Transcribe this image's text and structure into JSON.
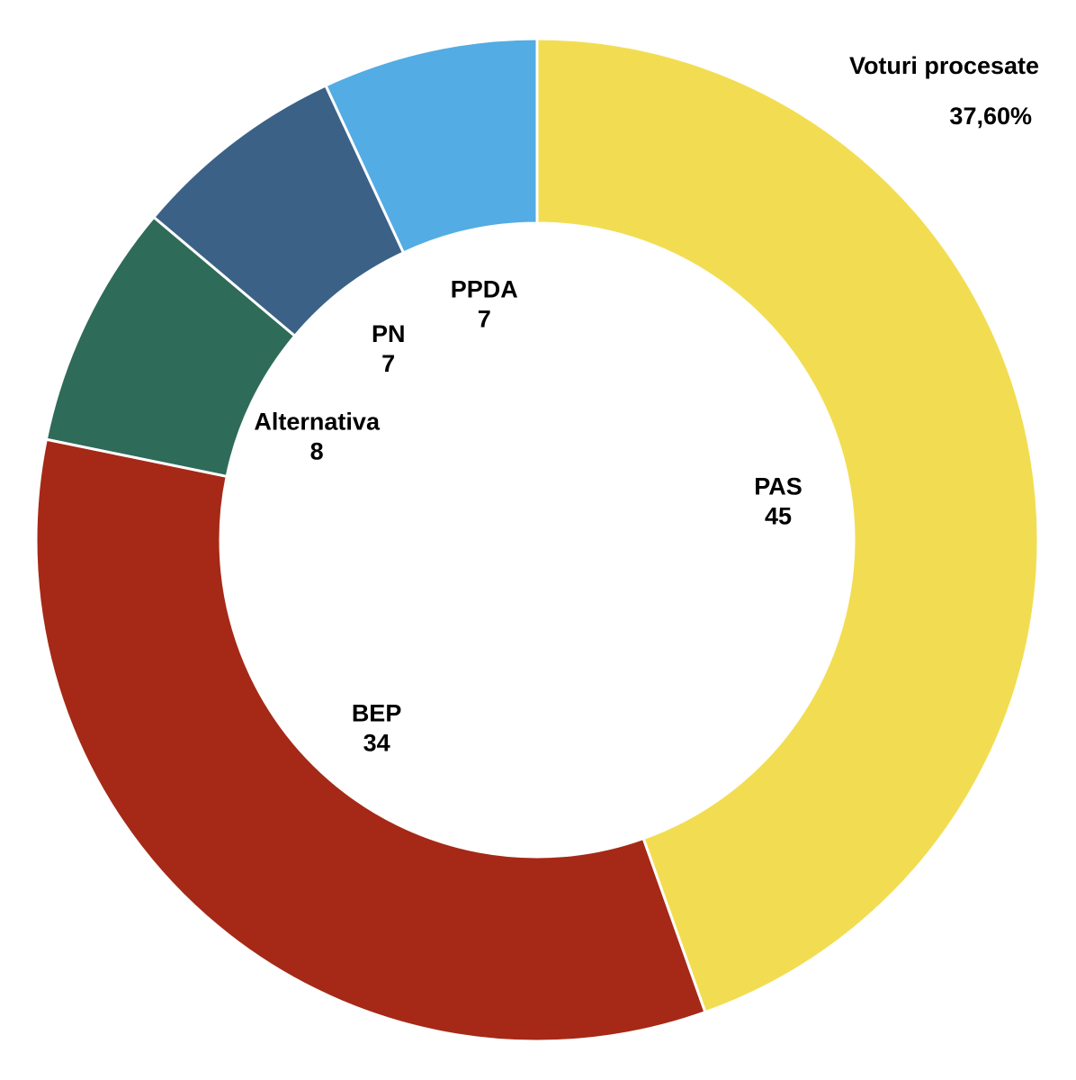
{
  "chart_data": {
    "type": "donut",
    "annotations": [
      "Voturi procesate",
      "37,60%"
    ],
    "categories": [
      "PAS",
      "BEP",
      "Alternativa",
      "PN",
      "PPDA"
    ],
    "values": [
      45,
      34,
      8,
      7,
      7
    ],
    "colors": [
      "#f2dd52",
      "#a52916",
      "#2e6b58",
      "#3b6187",
      "#53ace3"
    ]
  }
}
